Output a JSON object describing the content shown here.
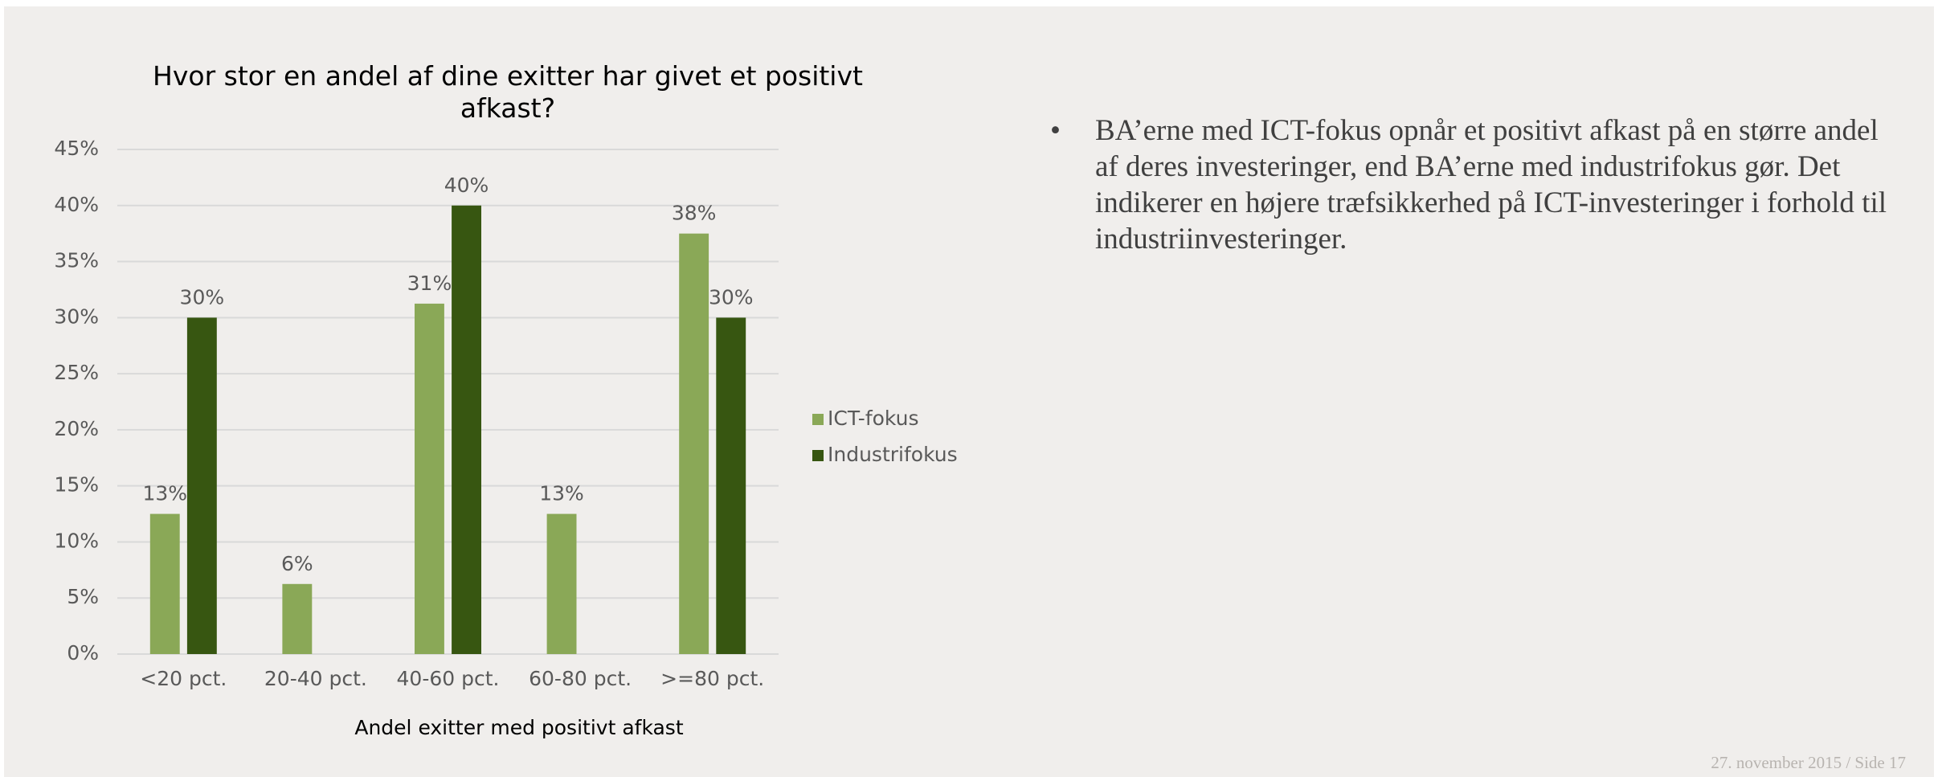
{
  "chart_data": {
    "type": "bar",
    "title": "Hvor stor en andel af dine exitter har givet et positivt afkast?",
    "x_label": "Andel exitter med positivt afkast",
    "categories": [
      "<20 pct.",
      "20-40 pct.",
      "40-60 pct.",
      "60-80 pct.",
      ">=80 pct."
    ],
    "series": [
      {
        "name": "ICT-fokus",
        "color": "#8aa857",
        "values": [
          12.5,
          6.25,
          31.25,
          12.5,
          37.5
        ],
        "value_labels": [
          "13%",
          "6%",
          "31%",
          "13%",
          "38%"
        ]
      },
      {
        "name": "Industrifokus",
        "color": "#375611",
        "values": [
          30,
          null,
          40,
          null,
          30
        ],
        "value_labels": [
          "30%",
          null,
          "40%",
          null,
          "30%"
        ]
      }
    ],
    "ylim": [
      0,
      45
    ],
    "yticks": [
      {
        "value": 0,
        "label": "0%"
      },
      {
        "value": 5,
        "label": "5%"
      },
      {
        "value": 10,
        "label": "10%"
      },
      {
        "value": 15,
        "label": "15%"
      },
      {
        "value": 20,
        "label": "20%"
      },
      {
        "value": 25,
        "label": "25%"
      },
      {
        "value": 30,
        "label": "30%"
      },
      {
        "value": 35,
        "label": "35%"
      },
      {
        "value": 40,
        "label": "40%"
      },
      {
        "value": 45,
        "label": "45%"
      }
    ],
    "grid": true,
    "legend": "right"
  },
  "bullet": "BA’erne med ICT-fokus opnår et positivt afkast på en større andel af deres investeringer, end BA’erne med industrifokus gør. Det indikerer en højere træfsikkerhed på ICT-investeringer i forhold til industriinvesteringer.",
  "footer": "27. november 2015 / Side 17"
}
